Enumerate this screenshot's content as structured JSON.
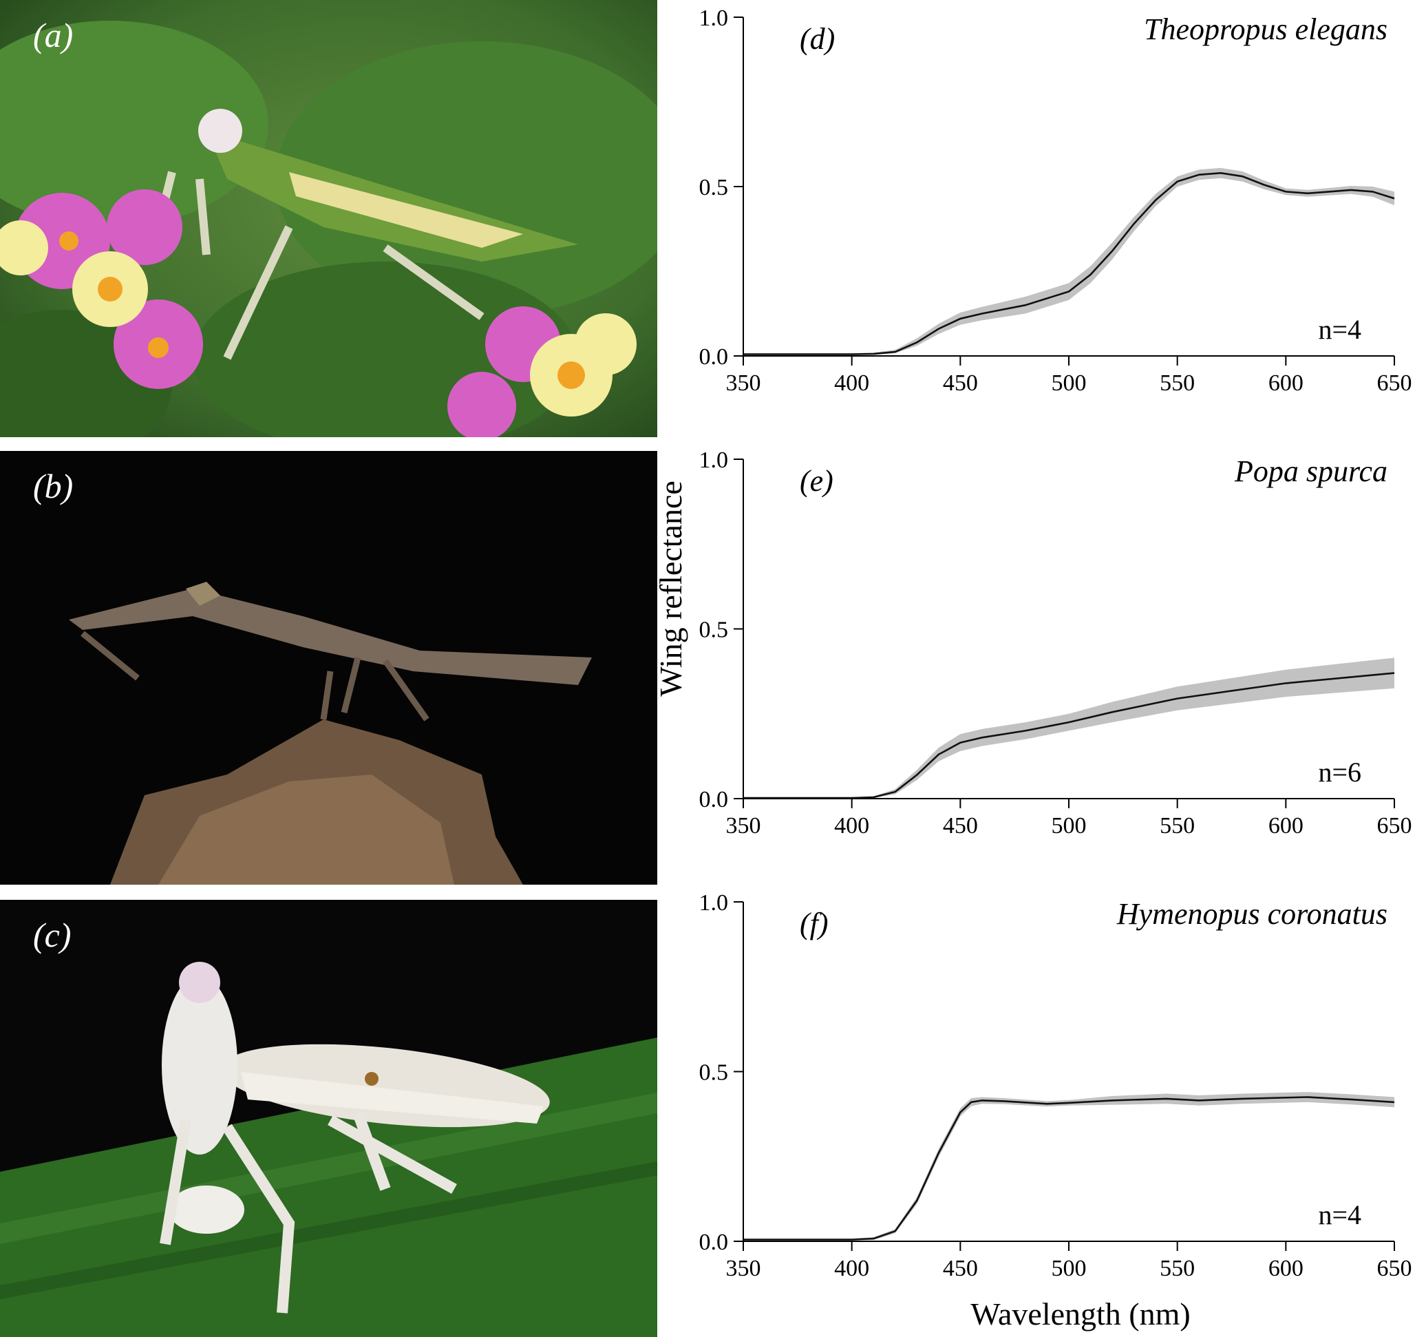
{
  "photos": [
    {
      "label": "(a)",
      "species": "Theopropus elegans"
    },
    {
      "label": "(b)",
      "species": "Popa spurca"
    },
    {
      "label": "(c)",
      "species": "Hymenopus coronatus"
    }
  ],
  "figure": {
    "ylabel": "Wing reflectance",
    "xlabel": "Wavelength (nm)"
  },
  "chart_data": [
    {
      "type": "line",
      "panel": "(d)",
      "title": "Theopropus elegans",
      "n_label": "n=4",
      "xlim": [
        350,
        650
      ],
      "ylim": [
        0,
        1
      ],
      "xticks": [
        "350",
        "400",
        "450",
        "500",
        "550",
        "600",
        "650"
      ],
      "yticks": [
        "0.0",
        "0.5",
        "1.0"
      ],
      "band_color": "#c2c2c2",
      "x": [
        350,
        400,
        410,
        420,
        430,
        440,
        450,
        460,
        480,
        500,
        510,
        520,
        530,
        540,
        550,
        560,
        570,
        580,
        590,
        600,
        610,
        620,
        630,
        640,
        650
      ],
      "mean": [
        0.005,
        0.005,
        0.006,
        0.012,
        0.04,
        0.08,
        0.11,
        0.125,
        0.15,
        0.19,
        0.24,
        0.31,
        0.39,
        0.46,
        0.515,
        0.535,
        0.54,
        0.53,
        0.505,
        0.485,
        0.48,
        0.485,
        0.49,
        0.485,
        0.465
      ],
      "upper": [
        0.008,
        0.008,
        0.01,
        0.018,
        0.052,
        0.095,
        0.128,
        0.145,
        0.175,
        0.215,
        0.265,
        0.335,
        0.41,
        0.478,
        0.53,
        0.55,
        0.555,
        0.545,
        0.518,
        0.495,
        0.49,
        0.496,
        0.502,
        0.5,
        0.485
      ],
      "lower": [
        0.002,
        0.002,
        0.003,
        0.008,
        0.03,
        0.065,
        0.092,
        0.105,
        0.125,
        0.165,
        0.215,
        0.285,
        0.368,
        0.442,
        0.5,
        0.52,
        0.525,
        0.515,
        0.492,
        0.475,
        0.47,
        0.474,
        0.478,
        0.47,
        0.445
      ]
    },
    {
      "type": "line",
      "panel": "(e)",
      "title": "Popa spurca",
      "n_label": "n=6",
      "xlim": [
        350,
        650
      ],
      "ylim": [
        0,
        1
      ],
      "xticks": [
        "350",
        "400",
        "450",
        "500",
        "550",
        "600",
        "650"
      ],
      "yticks": [
        "0.0",
        "0.5",
        "1.0"
      ],
      "band_color": "#c2c2c2",
      "x": [
        350,
        400,
        410,
        420,
        430,
        440,
        450,
        460,
        480,
        500,
        520,
        550,
        600,
        650
      ],
      "mean": [
        0.002,
        0.002,
        0.004,
        0.02,
        0.07,
        0.13,
        0.165,
        0.18,
        0.2,
        0.225,
        0.255,
        0.295,
        0.34,
        0.37
      ],
      "upper": [
        0.004,
        0.004,
        0.007,
        0.028,
        0.085,
        0.15,
        0.19,
        0.205,
        0.225,
        0.25,
        0.285,
        0.33,
        0.38,
        0.415
      ],
      "lower": [
        0.001,
        0.001,
        0.002,
        0.013,
        0.055,
        0.11,
        0.14,
        0.155,
        0.175,
        0.2,
        0.225,
        0.26,
        0.3,
        0.325
      ]
    },
    {
      "type": "line",
      "panel": "(f)",
      "title": "Hymenopus coronatus",
      "n_label": "n=4",
      "xlim": [
        350,
        650
      ],
      "ylim": [
        0,
        1
      ],
      "xticks": [
        "350",
        "400",
        "450",
        "500",
        "550",
        "600",
        "650"
      ],
      "yticks": [
        "0.0",
        "0.5",
        "1.0"
      ],
      "band_color": "#c2c2c2",
      "x": [
        350,
        400,
        410,
        420,
        430,
        440,
        450,
        455,
        460,
        470,
        490,
        500,
        520,
        545,
        560,
        580,
        610,
        630,
        650
      ],
      "mean": [
        0.005,
        0.005,
        0.008,
        0.03,
        0.12,
        0.26,
        0.38,
        0.41,
        0.415,
        0.413,
        0.405,
        0.408,
        0.415,
        0.42,
        0.415,
        0.42,
        0.425,
        0.418,
        0.41
      ],
      "upper": [
        0.008,
        0.008,
        0.012,
        0.036,
        0.13,
        0.272,
        0.392,
        0.422,
        0.425,
        0.422,
        0.413,
        0.416,
        0.428,
        0.435,
        0.43,
        0.435,
        0.44,
        0.433,
        0.425
      ],
      "lower": [
        0.002,
        0.002,
        0.004,
        0.024,
        0.11,
        0.248,
        0.368,
        0.398,
        0.405,
        0.404,
        0.397,
        0.4,
        0.402,
        0.405,
        0.4,
        0.405,
        0.41,
        0.403,
        0.395
      ]
    }
  ]
}
